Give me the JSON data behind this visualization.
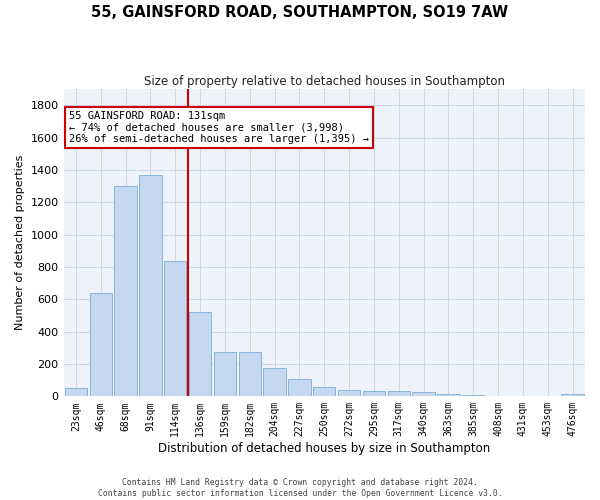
{
  "title": "55, GAINSFORD ROAD, SOUTHAMPTON, SO19 7AW",
  "subtitle": "Size of property relative to detached houses in Southampton",
  "xlabel": "Distribution of detached houses by size in Southampton",
  "ylabel": "Number of detached properties",
  "categories": [
    "23sqm",
    "46sqm",
    "68sqm",
    "91sqm",
    "114sqm",
    "136sqm",
    "159sqm",
    "182sqm",
    "204sqm",
    "227sqm",
    "250sqm",
    "272sqm",
    "295sqm",
    "317sqm",
    "340sqm",
    "363sqm",
    "385sqm",
    "408sqm",
    "431sqm",
    "453sqm",
    "476sqm"
  ],
  "values": [
    50,
    640,
    1300,
    1370,
    840,
    520,
    275,
    275,
    175,
    105,
    55,
    40,
    35,
    30,
    25,
    15,
    10,
    5,
    5,
    5,
    15
  ],
  "bar_color": "#c5d8ef",
  "bar_edge_color": "#7bafd4",
  "vline_color": "#cc0000",
  "annotation_text": "55 GAINSFORD ROAD: 131sqm\n← 74% of detached houses are smaller (3,998)\n26% of semi-detached houses are larger (1,395) →",
  "annotation_box_color": "#ffffff",
  "annotation_box_edge": "#cc0000",
  "ylim": [
    0,
    1900
  ],
  "yticks": [
    0,
    200,
    400,
    600,
    800,
    1000,
    1200,
    1400,
    1600,
    1800
  ],
  "grid_color": "#d0d8e8",
  "bg_color": "#edf2fb",
  "footer1": "Contains HM Land Registry data © Crown copyright and database right 2024.",
  "footer2": "Contains public sector information licensed under the Open Government Licence v3.0."
}
